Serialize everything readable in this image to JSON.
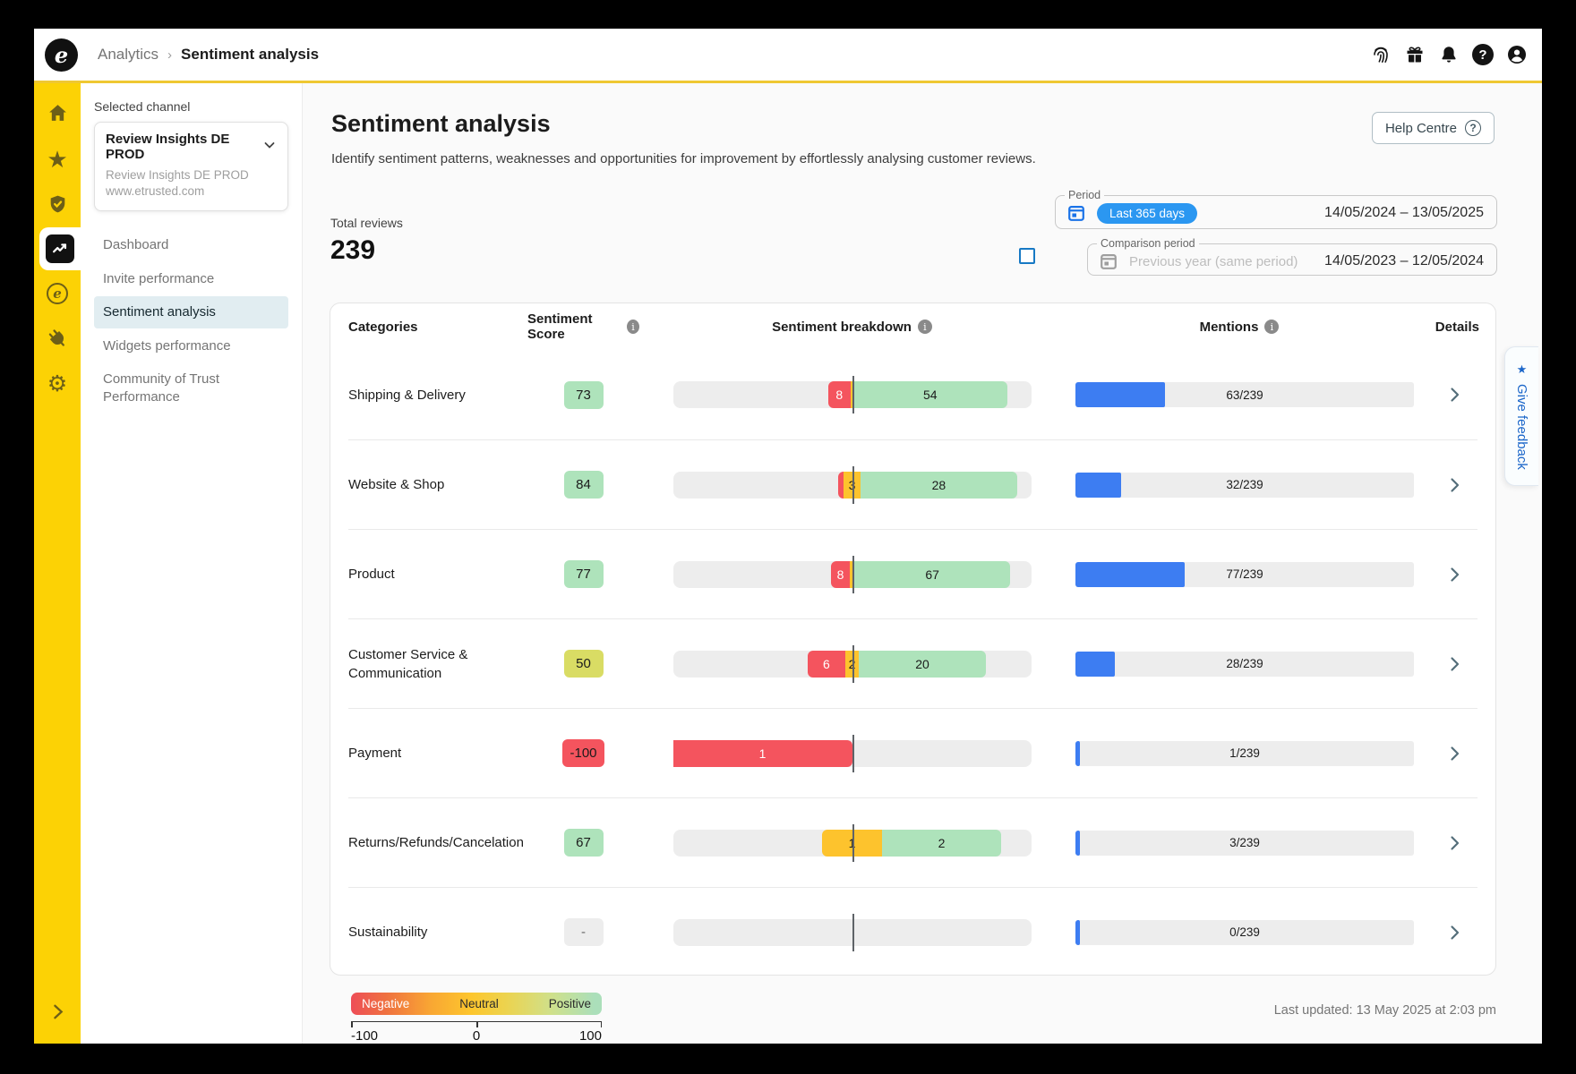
{
  "topbar": {
    "logo_letter": "e",
    "breadcrumb_section": "Analytics",
    "breadcrumb_sep": "›",
    "breadcrumb_current": "Sentiment analysis",
    "icons": [
      "fingerprint-icon",
      "gift-icon",
      "bell-icon",
      "help-icon",
      "account-icon"
    ]
  },
  "sidebar": {
    "icons": [
      "home-icon",
      "star-icon",
      "shield-check-icon",
      "analytics-icon",
      "etrusted-icon",
      "plug-icon",
      "gear-icon",
      "expand-chevron-icon"
    ],
    "active_icon": "analytics-icon",
    "logo_letter": "e"
  },
  "channel": {
    "label": "Selected channel",
    "name": "Review Insights DE PROD",
    "sub_name": "Review Insights DE PROD",
    "url": "www.etrusted.com",
    "nav": [
      "Dashboard",
      "Invite performance",
      "Sentiment analysis",
      "Widgets performance",
      "Community of Trust Performance"
    ],
    "active_index": 2
  },
  "page": {
    "title": "Sentiment analysis",
    "subtitle": "Identify sentiment patterns, weaknesses and opportunities for improvement by effortlessly analysing customer reviews.",
    "help_button": "Help Centre"
  },
  "stats": {
    "total_reviews_label": "Total reviews",
    "total_reviews": "239"
  },
  "period": {
    "label": "Period",
    "chip": "Last 365 days",
    "range": "14/05/2024 – 13/05/2025"
  },
  "comparison": {
    "label": "Comparison period",
    "placeholder": "Previous year (same period)",
    "range": "14/05/2023 – 12/05/2024"
  },
  "table": {
    "headers": {
      "categories": "Categories",
      "score": "Sentiment Score",
      "breakdown": "Sentiment breakdown",
      "mentions": "Mentions",
      "details": "Details"
    },
    "mentions_total": 239,
    "rows": [
      {
        "category": "Shipping & Delivery",
        "score": "73",
        "score_tone": "positive",
        "neg": 8,
        "neu": 1,
        "pos": 54,
        "total": 63,
        "neg_label": "8",
        "neu_label": "",
        "pos_label": "54",
        "mentions": 63,
        "mentions_label": "63/239"
      },
      {
        "category": "Website & Shop",
        "score": "84",
        "score_tone": "positive",
        "neg": 1,
        "neu": 3,
        "pos": 28,
        "total": 32,
        "neg_label": "",
        "neu_label": "3",
        "pos_label": "28",
        "mentions": 32,
        "mentions_label": "32/239"
      },
      {
        "category": "Product",
        "score": "77",
        "score_tone": "positive",
        "neg": 8,
        "neu": 2,
        "pos": 67,
        "total": 77,
        "neg_label": "8",
        "neu_label": "",
        "pos_label": "67",
        "mentions": 77,
        "mentions_label": "77/239"
      },
      {
        "category": "Customer Service & Communication",
        "score": "50",
        "score_tone": "neutral",
        "neg": 6,
        "neu": 2,
        "pos": 20,
        "total": 28,
        "neg_label": "6",
        "neu_label": "2",
        "pos_label": "20",
        "mentions": 28,
        "mentions_label": "28/239"
      },
      {
        "category": "Payment",
        "score": "-100",
        "score_tone": "negative",
        "neg": 1,
        "neu": 0,
        "pos": 0,
        "total": 1,
        "neg_label": "1",
        "neu_label": "",
        "pos_label": "",
        "mentions": 1,
        "mentions_label": "1/239"
      },
      {
        "category": "Returns/Refunds/Cancelation",
        "score": "67",
        "score_tone": "positive",
        "neg": 0,
        "neu": 1,
        "pos": 2,
        "total": 3,
        "neg_label": "",
        "neu_label": "1",
        "pos_label": "2",
        "mentions": 3,
        "mentions_label": "3/239"
      },
      {
        "category": "Sustainability",
        "score": "-",
        "score_tone": "empty",
        "neg": 0,
        "neu": 0,
        "pos": 0,
        "total": 0,
        "neg_label": "",
        "neu_label": "",
        "pos_label": "",
        "mentions": 0,
        "mentions_label": "0/239"
      }
    ]
  },
  "legend": {
    "negative": "Negative",
    "neutral": "Neutral",
    "positive": "Positive",
    "min": "-100",
    "mid": "0",
    "max": "100"
  },
  "footer": {
    "last_updated": "Last updated: 13 May 2025 at 2:03 pm"
  },
  "feedback": {
    "star": "★",
    "label": "Give feedback"
  },
  "colors": {
    "brand_yellow": "#fcd205",
    "accent_blue": "#2b97f1",
    "mentions_blue": "#3d7df2",
    "negative_red": "#f4545e",
    "neutral_yellow": "#fdc32d",
    "positive_green": "#aee3bb",
    "score_neutral": "#d9dc64",
    "active_nav_bg": "#e1edf1",
    "feedback_blue": "#1b66c9"
  }
}
